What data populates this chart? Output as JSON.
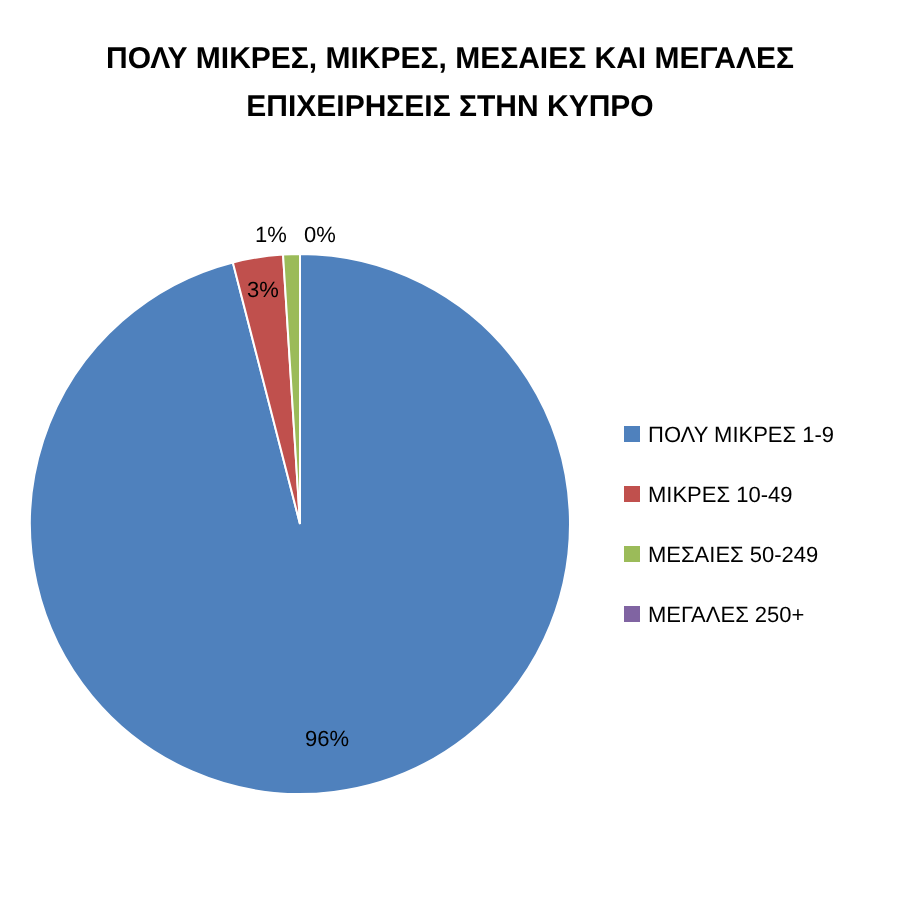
{
  "chart_data": {
    "type": "pie",
    "title": "ΠΟΛΥ ΜΙΚΡΕΣ, ΜΙΚΡΕΣ, ΜΕΣΑΙΕΣ ΚΑΙ ΜΕΓΑΛΕΣ ΕΠΙΧΕΙΡΗΣΕΙΣ ΣΤΗΝ ΚΥΠΡΟ",
    "categories": [
      "ΠΟΛΥ ΜΙΚΡΕΣ 1-9",
      "ΜΙΚΡΕΣ 10-49",
      "ΜΕΣΑΙΕΣ 50-249",
      "ΜΕΓΑΛΕΣ 250+"
    ],
    "values": [
      96,
      3,
      1,
      0
    ],
    "value_labels": [
      "96%",
      "3%",
      "1%",
      "0%"
    ],
    "colors": [
      "#4f81bd",
      "#c0504d",
      "#9bbb59",
      "#8064a2"
    ],
    "legend": "right"
  }
}
